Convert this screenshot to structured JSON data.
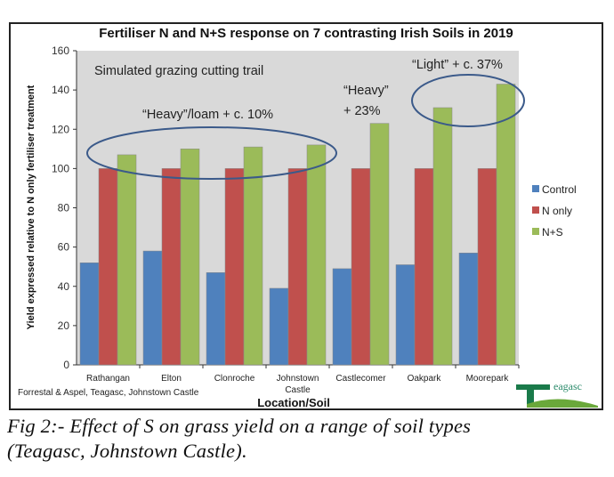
{
  "chart_data": {
    "type": "bar",
    "title": "Fertiliser N and N+S response on 7 contrasting Irish Soils in 2019",
    "xlabel": "Location/Soil",
    "ylabel": "Yield expressed relative to N only fertiliser treatment",
    "ylim": [
      0,
      160
    ],
    "yticks": [
      0,
      20,
      40,
      60,
      80,
      100,
      120,
      140,
      160
    ],
    "categories": [
      "Rathangan",
      "Elton",
      "Clonroche",
      "Johnstown Castle",
      "Castlecomer",
      "Oakpark",
      "Moorepark"
    ],
    "series": [
      {
        "name": "Control",
        "color": "#4f81bd",
        "values": [
          52,
          58,
          47,
          39,
          49,
          51,
          57
        ]
      },
      {
        "name": "N only",
        "color": "#c0504d",
        "values": [
          100,
          100,
          100,
          100,
          100,
          100,
          100
        ]
      },
      {
        "name": "N+S",
        "color": "#9bbb59",
        "values": [
          107,
          110,
          111,
          112,
          123,
          131,
          143
        ]
      }
    ],
    "legend": "right",
    "annotations": [
      "Simulated grazing cutting trail",
      "“Heavy”/loam + c. 10%",
      "“Heavy”",
      "+ 23%",
      "“Light” + c. 37%"
    ],
    "source": "Forrestal & Aspel, Teagasc, Johnstown Castle"
  },
  "logo": "teagasc",
  "caption": {
    "line1": "Fig 2:- Effect of S on grass yield on a range of soil types",
    "line2": "(Teagasc, Johnstown Castle)."
  }
}
